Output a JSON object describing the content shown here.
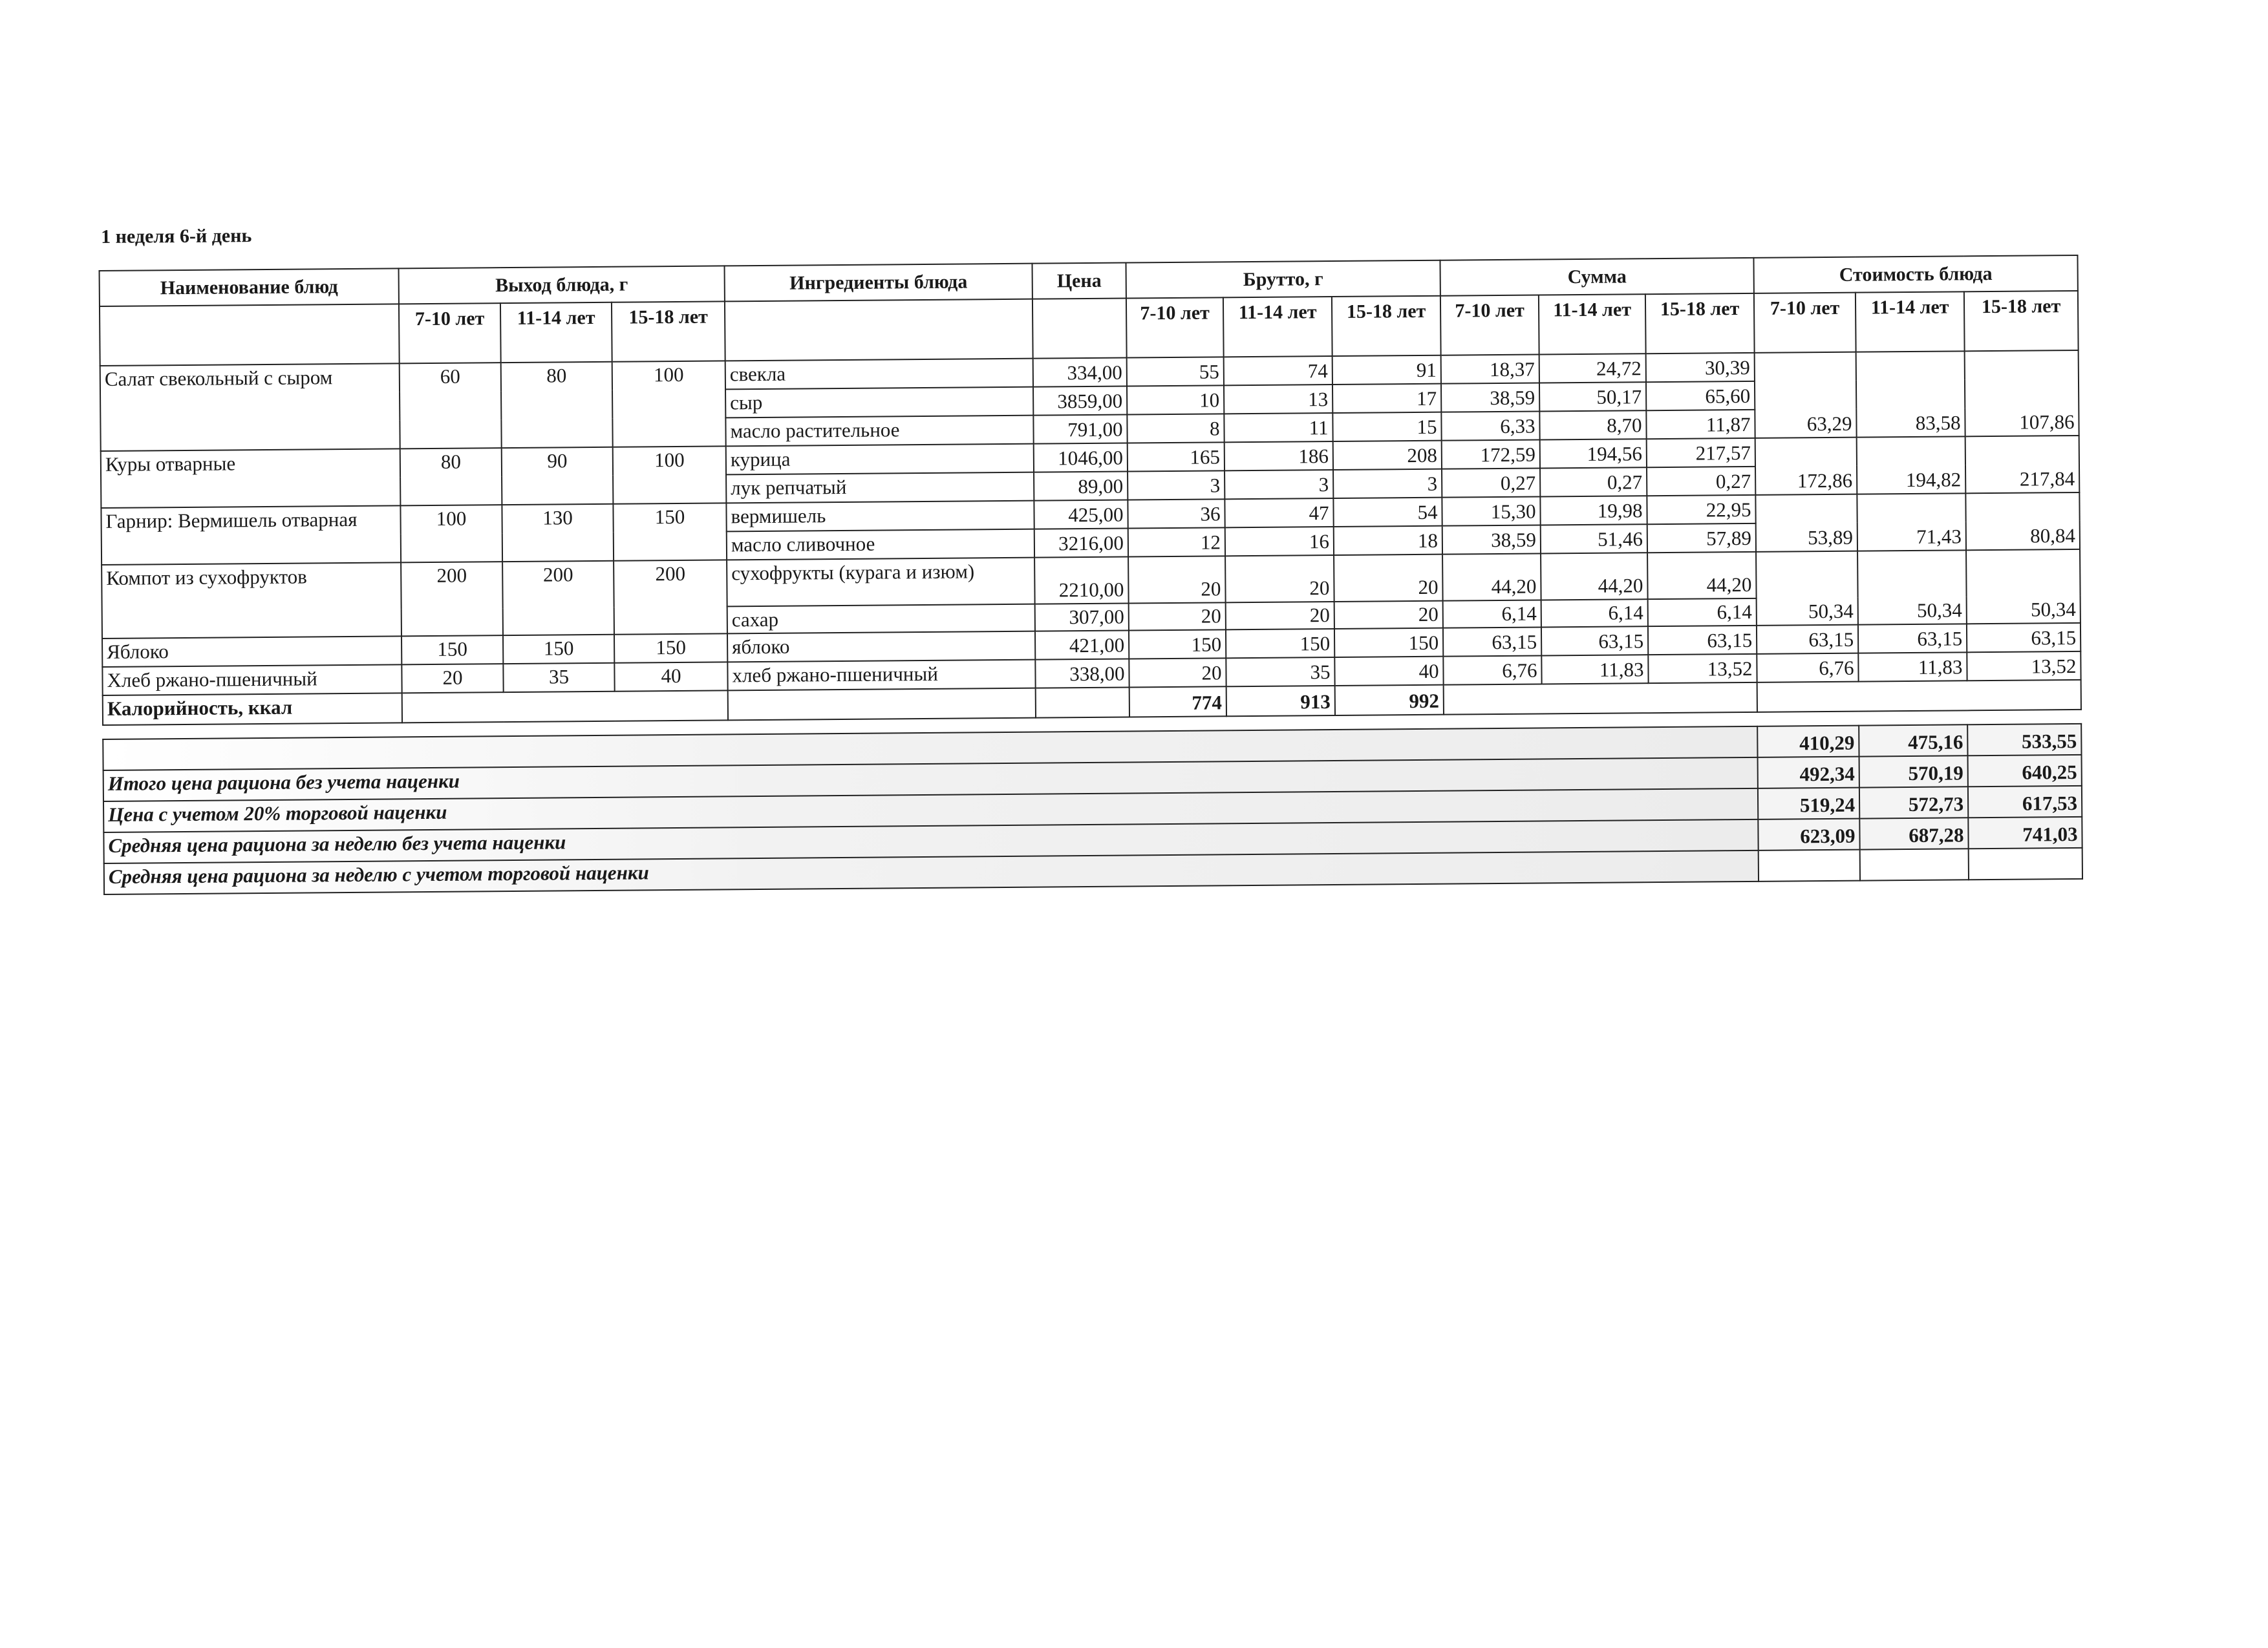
{
  "title": "1 неделя 6-й день",
  "headers": {
    "dish_name": "Наименование блюд",
    "yield": "Выход блюда, г",
    "ingredients": "Ингредиенты блюда",
    "price": "Цена",
    "brutto": "Брутто, г",
    "sum": "Сумма",
    "cost": "Стоимость блюда",
    "ages": [
      "7-10 лет",
      "11-14 лет",
      "15-18 лет"
    ]
  },
  "dishes": [
    {
      "name": "Салат свекольный с сыром",
      "yield": [
        "60",
        "80",
        "100"
      ],
      "cost": [
        "63,29",
        "83,58",
        "107,86"
      ],
      "ingredients": [
        {
          "name": "свекла",
          "price": "334,00",
          "brutto": [
            "55",
            "74",
            "91"
          ],
          "sum": [
            "18,37",
            "24,72",
            "30,39"
          ]
        },
        {
          "name": "сыр",
          "price": "3859,00",
          "brutto": [
            "10",
            "13",
            "17"
          ],
          "sum": [
            "38,59",
            "50,17",
            "65,60"
          ]
        },
        {
          "name": "масло растительное",
          "price": "791,00",
          "brutto": [
            "8",
            "11",
            "15"
          ],
          "sum": [
            "6,33",
            "8,70",
            "11,87"
          ]
        }
      ]
    },
    {
      "name": "Куры отварные",
      "yield": [
        "80",
        "90",
        "100"
      ],
      "cost": [
        "172,86",
        "194,82",
        "217,84"
      ],
      "ingredients": [
        {
          "name": "курица",
          "price": "1046,00",
          "brutto": [
            "165",
            "186",
            "208"
          ],
          "sum": [
            "172,59",
            "194,56",
            "217,57"
          ]
        },
        {
          "name": "лук репчатый",
          "price": "89,00",
          "brutto": [
            "3",
            "3",
            "3"
          ],
          "sum": [
            "0,27",
            "0,27",
            "0,27"
          ]
        }
      ]
    },
    {
      "name": "Гарнир: Вермишель отварная",
      "yield": [
        "100",
        "130",
        "150"
      ],
      "cost": [
        "53,89",
        "71,43",
        "80,84"
      ],
      "ingredients": [
        {
          "name": "вермишель",
          "price": "425,00",
          "brutto": [
            "36",
            "47",
            "54"
          ],
          "sum": [
            "15,30",
            "19,98",
            "22,95"
          ]
        },
        {
          "name": "масло сливочное",
          "price": "3216,00",
          "brutto": [
            "12",
            "16",
            "18"
          ],
          "sum": [
            "38,59",
            "51,46",
            "57,89"
          ]
        }
      ]
    },
    {
      "name": "Компот из сухофруктов",
      "yield": [
        "200",
        "200",
        "200"
      ],
      "cost": [
        "50,34",
        "50,34",
        "50,34"
      ],
      "ingredients": [
        {
          "name": "сухофрукты (курага и изюм)",
          "price": "2210,00",
          "brutto": [
            "20",
            "20",
            "20"
          ],
          "sum": [
            "44,20",
            "44,20",
            "44,20"
          ]
        },
        {
          "name": "сахар",
          "price": "307,00",
          "brutto": [
            "20",
            "20",
            "20"
          ],
          "sum": [
            "6,14",
            "6,14",
            "6,14"
          ]
        }
      ]
    },
    {
      "name": "Яблоко",
      "yield": [
        "150",
        "150",
        "150"
      ],
      "cost": [
        "63,15",
        "63,15",
        "63,15"
      ],
      "ingredients": [
        {
          "name": "яблоко",
          "price": "421,00",
          "brutto": [
            "150",
            "150",
            "150"
          ],
          "sum": [
            "63,15",
            "63,15",
            "63,15"
          ]
        }
      ]
    },
    {
      "name": "Хлеб ржано-пшеничный",
      "yield": [
        "20",
        "35",
        "40"
      ],
      "cost": [
        "6,76",
        "11,83",
        "13,52"
      ],
      "ingredients": [
        {
          "name": "хлеб ржано-пшеничный",
          "price": "338,00",
          "brutto": [
            "20",
            "35",
            "40"
          ],
          "sum": [
            "6,76",
            "11,83",
            "13,52"
          ]
        }
      ]
    }
  ],
  "calories": {
    "label": "Калорийность, ккал",
    "brutto_totals": [
      "774",
      "913",
      "992"
    ]
  },
  "summary": [
    {
      "label": "",
      "values": [
        "410,29",
        "475,16",
        "533,55"
      ]
    },
    {
      "label": "Итого цена рациона без учета наценки",
      "values": [
        "492,34",
        "570,19",
        "640,25"
      ]
    },
    {
      "label": "Цена с учетом 20% торговой наценки",
      "values": [
        "519,24",
        "572,73",
        "617,53"
      ]
    },
    {
      "label": "Средняя цена рациона за неделю без учета наценки",
      "values": [
        "623,09",
        "687,28",
        "741,03"
      ]
    },
    {
      "label": "Средняя цена рациона за неделю с учетом торговой наценки",
      "values": []
    }
  ]
}
